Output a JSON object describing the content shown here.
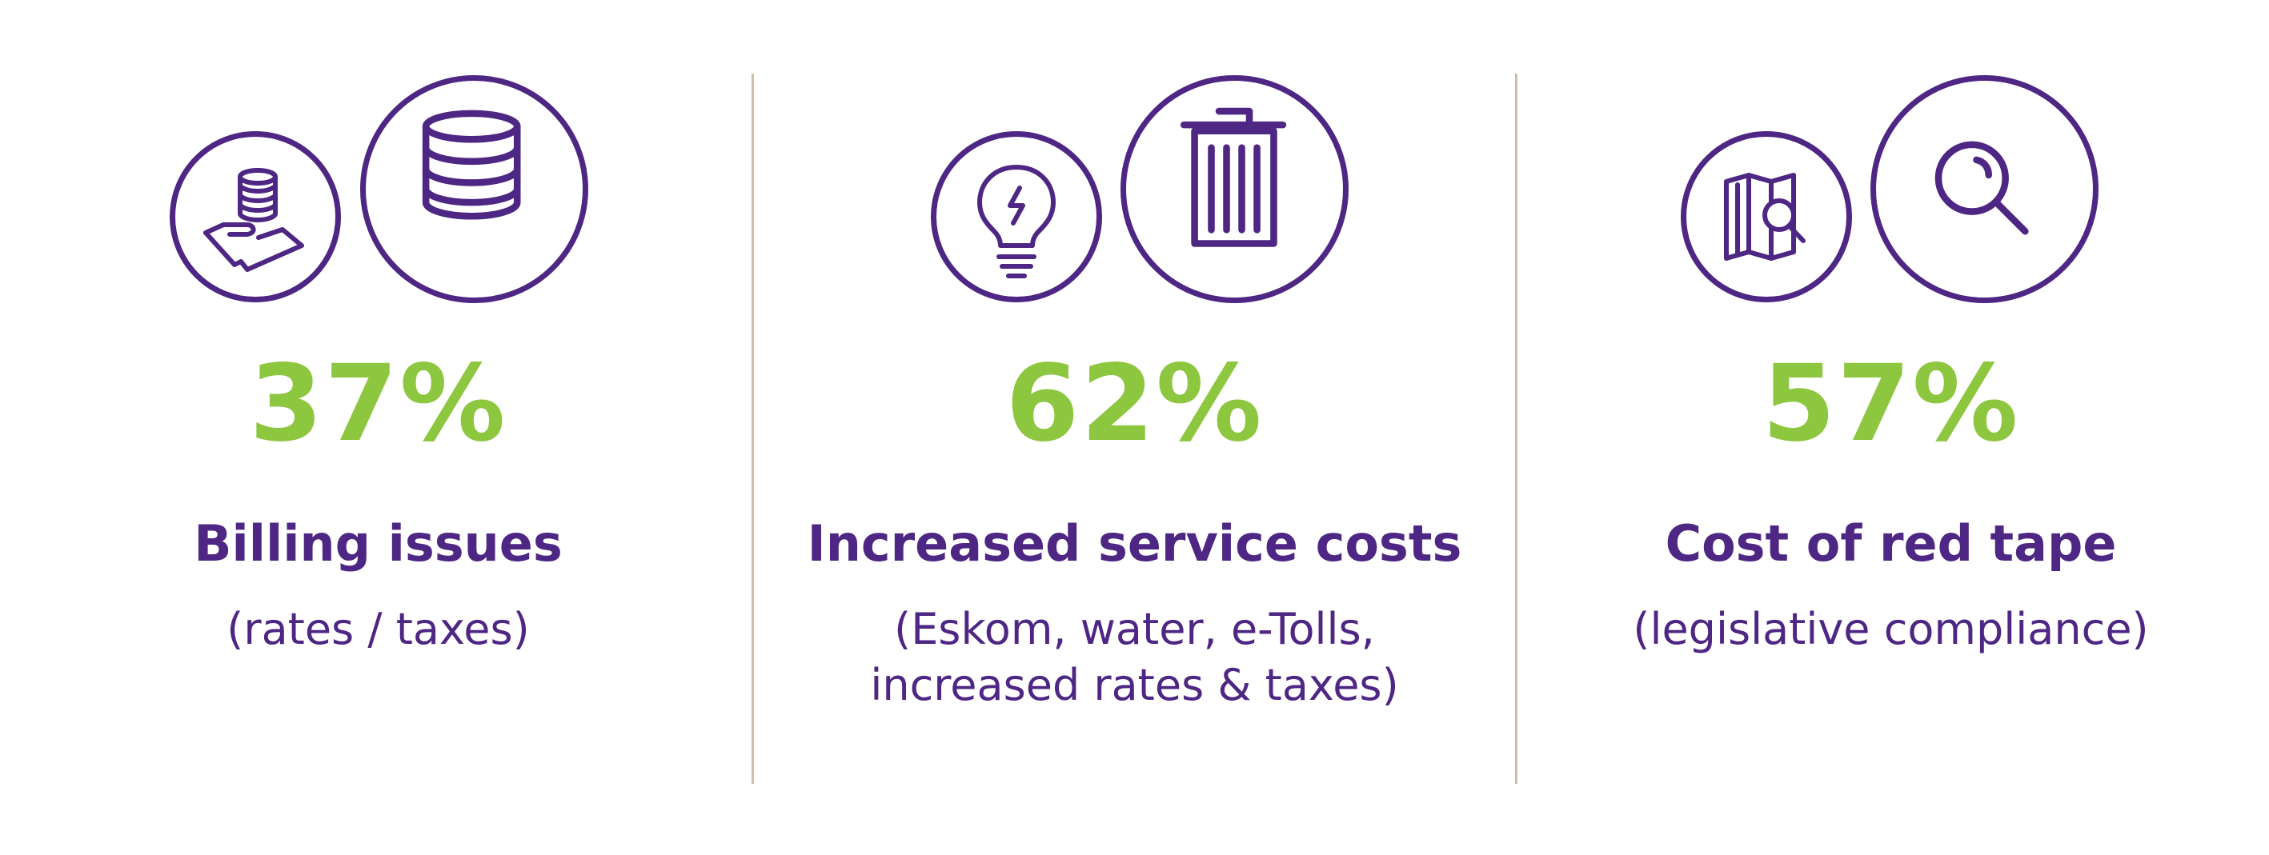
{
  "colors": {
    "accent_purple": "#4e2683",
    "accent_green": "#8dc63f",
    "divider": "#cdbfb0"
  },
  "panels": [
    {
      "icons": [
        "coins-in-hand-icon",
        "coin-stack-icon"
      ],
      "percent": "37%",
      "value": 37,
      "heading": "Billing issues",
      "sub_lines": [
        "(rates / taxes)"
      ]
    },
    {
      "icons": [
        "lightbulb-icon",
        "trash-bin-icon"
      ],
      "percent": "62%",
      "value": 62,
      "heading": "Increased service costs",
      "sub_lines": [
        "(Eskom, water, e-Tolls,",
        "increased rates & taxes)"
      ]
    },
    {
      "icons": [
        "map-search-icon",
        "magnifying-glass-icon"
      ],
      "percent": "57%",
      "value": 57,
      "heading": "Cost of red tape",
      "sub_lines": [
        "(legislative compliance)"
      ]
    }
  ]
}
